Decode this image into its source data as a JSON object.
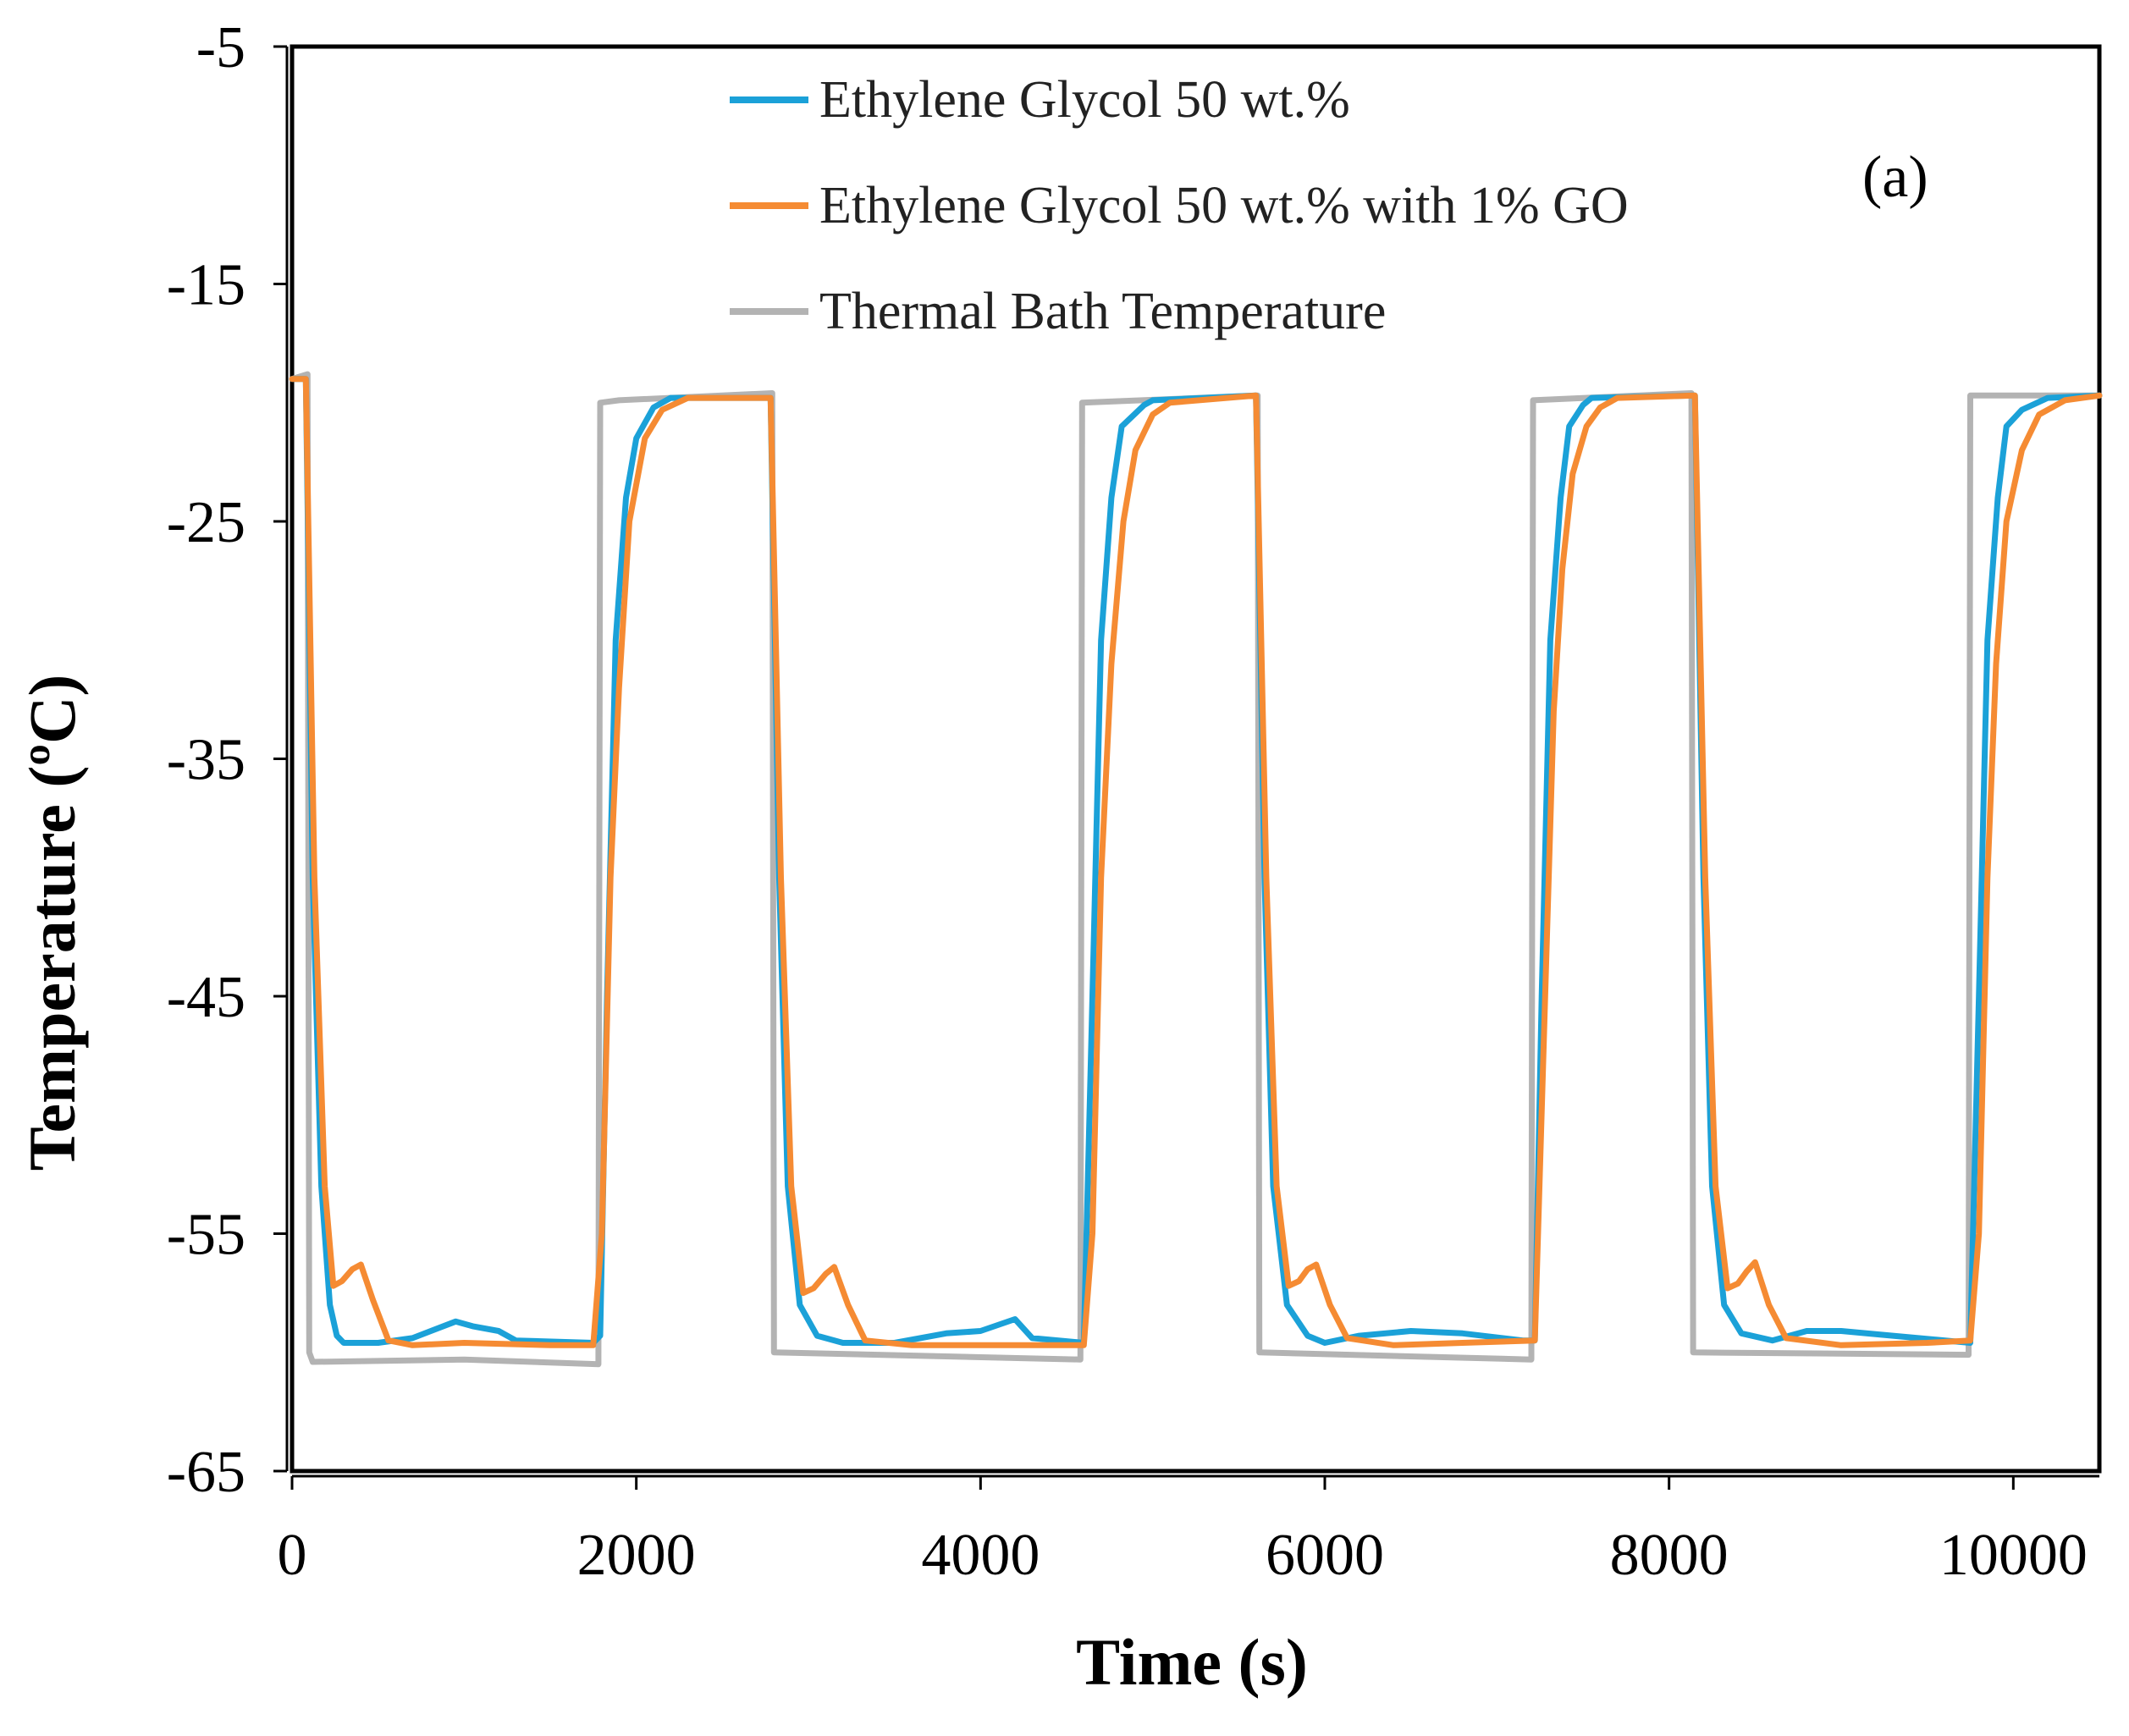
{
  "chart_data": {
    "type": "line",
    "panel_label": "(a)",
    "xlabel": "Time (s)",
    "ylabel": "Temperature (ºC)",
    "xlim": [
      0,
      10500
    ],
    "ylim": [
      -65,
      -5
    ],
    "xticks": [
      0,
      2000,
      4000,
      6000,
      8000,
      10000
    ],
    "yticks": [
      -5,
      -15,
      -25,
      -35,
      -45,
      -55,
      -65
    ],
    "xtick_labels": [
      "0",
      "2000",
      "4000",
      "6000",
      "8000",
      "10000"
    ],
    "ytick_labels": [
      "-5",
      "-15",
      "-25",
      "-35",
      "-45",
      "-55",
      "-65"
    ],
    "grid": false,
    "legend_position": "top-center",
    "series": [
      {
        "name": "Ethylene Glycol 50 wt.%",
        "color": "#1ba1d8",
        "points": [
          [
            0,
            -19
          ],
          [
            80,
            -19
          ],
          [
            120,
            -40
          ],
          [
            170,
            -53
          ],
          [
            220,
            -58
          ],
          [
            260,
            -59.3
          ],
          [
            300,
            -59.6
          ],
          [
            500,
            -59.6
          ],
          [
            700,
            -59.4
          ],
          [
            950,
            -58.7
          ],
          [
            1050,
            -58.9
          ],
          [
            1200,
            -59.1
          ],
          [
            1300,
            -59.5
          ],
          [
            1750,
            -59.6
          ],
          [
            1790,
            -59.3
          ],
          [
            1830,
            -45
          ],
          [
            1880,
            -30
          ],
          [
            1940,
            -24
          ],
          [
            2000,
            -21.5
          ],
          [
            2100,
            -20.2
          ],
          [
            2200,
            -19.8
          ],
          [
            2780,
            -19.8
          ],
          [
            2830,
            -40
          ],
          [
            2880,
            -53
          ],
          [
            2950,
            -58
          ],
          [
            3050,
            -59.3
          ],
          [
            3200,
            -59.6
          ],
          [
            3500,
            -59.6
          ],
          [
            3800,
            -59.2
          ],
          [
            4000,
            -59.1
          ],
          [
            4200,
            -58.6
          ],
          [
            4300,
            -59.4
          ],
          [
            4600,
            -59.6
          ],
          [
            4650,
            -45
          ],
          [
            4700,
            -30
          ],
          [
            4760,
            -24
          ],
          [
            4820,
            -21
          ],
          [
            4950,
            -20.1
          ],
          [
            5000,
            -19.9
          ],
          [
            5600,
            -19.7
          ],
          [
            5650,
            -40
          ],
          [
            5700,
            -53
          ],
          [
            5780,
            -58
          ],
          [
            5900,
            -59.3
          ],
          [
            6000,
            -59.6
          ],
          [
            6200,
            -59.3
          ],
          [
            6500,
            -59.1
          ],
          [
            6800,
            -59.2
          ],
          [
            7150,
            -59.5
          ],
          [
            7220,
            -59.5
          ],
          [
            7260,
            -45
          ],
          [
            7310,
            -30
          ],
          [
            7370,
            -24
          ],
          [
            7420,
            -21
          ],
          [
            7500,
            -20.1
          ],
          [
            7550,
            -19.8
          ],
          [
            8150,
            -19.7
          ],
          [
            8200,
            -40
          ],
          [
            8250,
            -53
          ],
          [
            8320,
            -58
          ],
          [
            8420,
            -59.2
          ],
          [
            8600,
            -59.5
          ],
          [
            8800,
            -59.1
          ],
          [
            9000,
            -59.1
          ],
          [
            9300,
            -59.3
          ],
          [
            9750,
            -59.6
          ],
          [
            9800,
            -45
          ],
          [
            9850,
            -30
          ],
          [
            9910,
            -24
          ],
          [
            9960,
            -21
          ],
          [
            10050,
            -20.3
          ],
          [
            10200,
            -19.8
          ],
          [
            10500,
            -19.7
          ]
        ]
      },
      {
        "name": "Ethylene Glycol 50 wt.% with 1% GO",
        "color": "#f58b33",
        "points": [
          [
            0,
            -19
          ],
          [
            80,
            -19
          ],
          [
            130,
            -40
          ],
          [
            190,
            -53
          ],
          [
            240,
            -57.2
          ],
          [
            290,
            -57
          ],
          [
            350,
            -56.5
          ],
          [
            400,
            -56.3
          ],
          [
            470,
            -57.8
          ],
          [
            560,
            -59.5
          ],
          [
            700,
            -59.7
          ],
          [
            1000,
            -59.6
          ],
          [
            1500,
            -59.7
          ],
          [
            1750,
            -59.7
          ],
          [
            1800,
            -55
          ],
          [
            1850,
            -40
          ],
          [
            1900,
            -32
          ],
          [
            1960,
            -25
          ],
          [
            2050,
            -21.5
          ],
          [
            2150,
            -20.3
          ],
          [
            2300,
            -19.8
          ],
          [
            2780,
            -19.8
          ],
          [
            2840,
            -40
          ],
          [
            2900,
            -53
          ],
          [
            2970,
            -57.5
          ],
          [
            3030,
            -57.3
          ],
          [
            3100,
            -56.7
          ],
          [
            3150,
            -56.4
          ],
          [
            3230,
            -58
          ],
          [
            3330,
            -59.5
          ],
          [
            3600,
            -59.7
          ],
          [
            4000,
            -59.7
          ],
          [
            4600,
            -59.7
          ],
          [
            4650,
            -55
          ],
          [
            4700,
            -40
          ],
          [
            4760,
            -31
          ],
          [
            4830,
            -25
          ],
          [
            4900,
            -22
          ],
          [
            5000,
            -20.5
          ],
          [
            5100,
            -20
          ],
          [
            5600,
            -19.7
          ],
          [
            5660,
            -40
          ],
          [
            5720,
            -53
          ],
          [
            5790,
            -57.2
          ],
          [
            5850,
            -57
          ],
          [
            5900,
            -56.5
          ],
          [
            5950,
            -56.3
          ],
          [
            6030,
            -58
          ],
          [
            6130,
            -59.4
          ],
          [
            6400,
            -59.7
          ],
          [
            6800,
            -59.6
          ],
          [
            7220,
            -59.5
          ],
          [
            7280,
            -45
          ],
          [
            7330,
            -33
          ],
          [
            7380,
            -27
          ],
          [
            7440,
            -23
          ],
          [
            7520,
            -21
          ],
          [
            7600,
            -20.2
          ],
          [
            7700,
            -19.8
          ],
          [
            8150,
            -19.7
          ],
          [
            8210,
            -40
          ],
          [
            8270,
            -53
          ],
          [
            8340,
            -57.3
          ],
          [
            8400,
            -57.1
          ],
          [
            8450,
            -56.6
          ],
          [
            8500,
            -56.2
          ],
          [
            8580,
            -58
          ],
          [
            8680,
            -59.4
          ],
          [
            9000,
            -59.7
          ],
          [
            9500,
            -59.6
          ],
          [
            9750,
            -59.5
          ],
          [
            9800,
            -55
          ],
          [
            9850,
            -40
          ],
          [
            9900,
            -31
          ],
          [
            9960,
            -25
          ],
          [
            10050,
            -22
          ],
          [
            10150,
            -20.5
          ],
          [
            10300,
            -19.9
          ],
          [
            10500,
            -19.7
          ]
        ]
      },
      {
        "name": "Thermal Bath Temperature",
        "color": "#b3b3b3",
        "points": [
          [
            0,
            -19
          ],
          [
            90,
            -18.8
          ],
          [
            100,
            -60
          ],
          [
            120,
            -60.4
          ],
          [
            1000,
            -60.3
          ],
          [
            1780,
            -60.5
          ],
          [
            1790,
            -20
          ],
          [
            1900,
            -19.9
          ],
          [
            2790,
            -19.6
          ],
          [
            2800,
            -60
          ],
          [
            4580,
            -60.3
          ],
          [
            4590,
            -20
          ],
          [
            5610,
            -19.7
          ],
          [
            5620,
            -60
          ],
          [
            7200,
            -60.3
          ],
          [
            7210,
            -19.9
          ],
          [
            8130,
            -19.6
          ],
          [
            8140,
            -60
          ],
          [
            9740,
            -60.1
          ],
          [
            9750,
            -19.7
          ],
          [
            10500,
            -19.7
          ]
        ]
      }
    ]
  }
}
